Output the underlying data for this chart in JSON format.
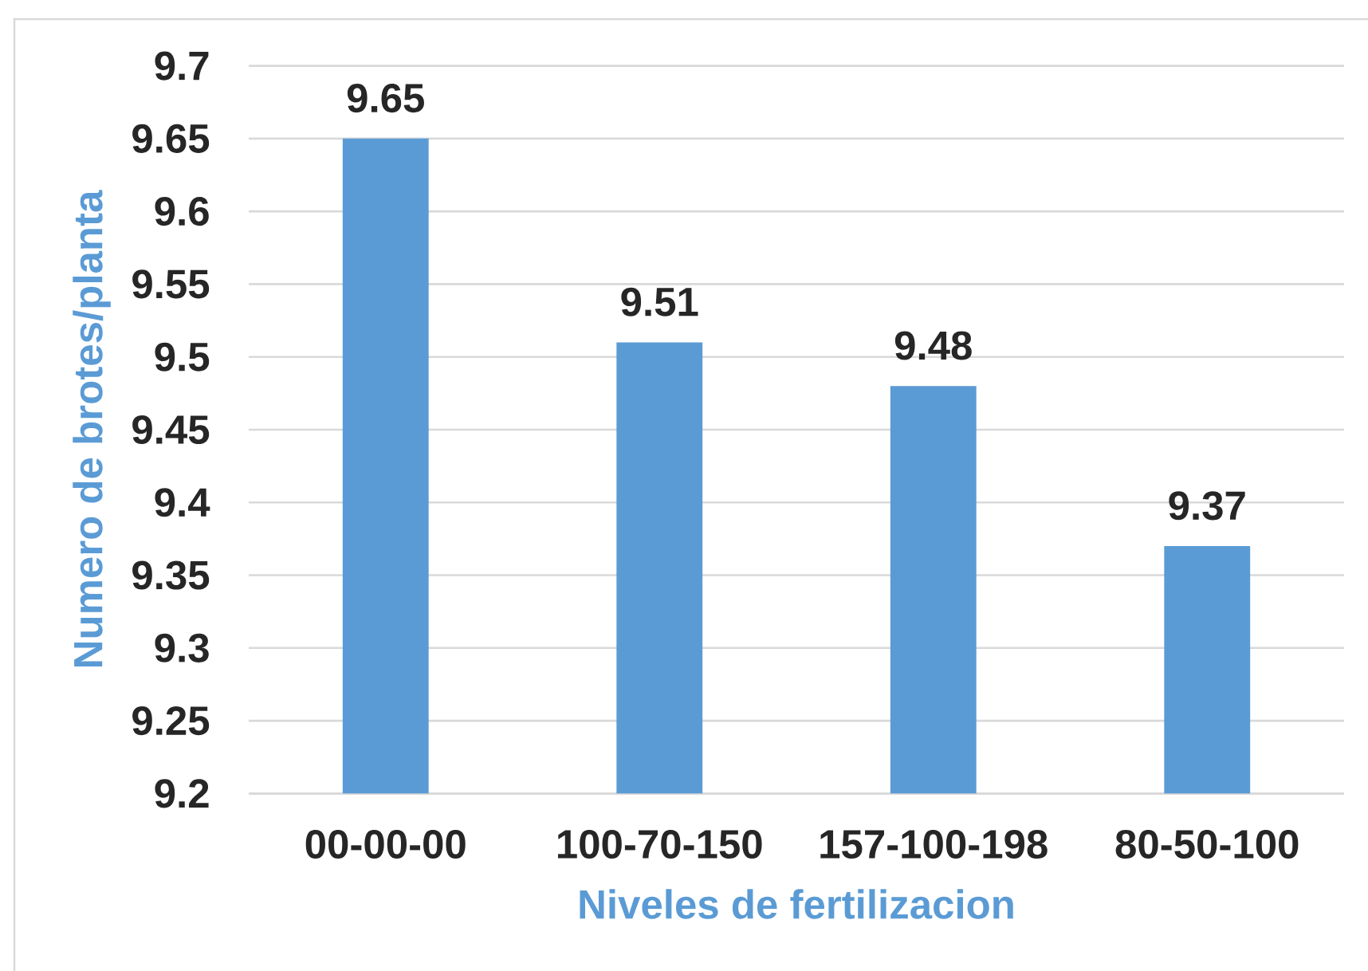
{
  "chart_data": {
    "type": "bar",
    "xlabel": "Niveles de fertilizacion",
    "ylabel": "Numero de brotes/planta",
    "categories": [
      "00-00-00",
      "100-70-150",
      "157-100-198",
      "80-50-100"
    ],
    "values": [
      9.65,
      9.51,
      9.48,
      9.37
    ],
    "color": "#5b9bd5",
    "ylim": [
      9.2,
      9.7
    ],
    "yticks": [
      9.2,
      9.25,
      9.3,
      9.35,
      9.4,
      9.45,
      9.5,
      9.55,
      9.6,
      9.65,
      9.7
    ],
    "grid": "y",
    "data_labels": true
  }
}
